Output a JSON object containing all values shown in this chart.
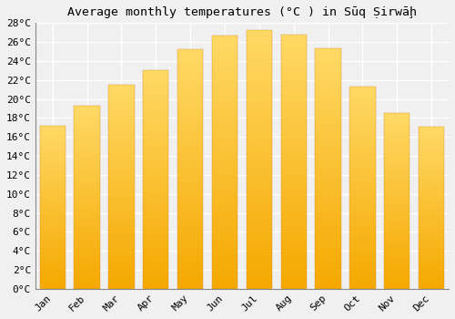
{
  "title": "Average monthly temperatures (°C ) in Sūq Ṣirwāḩ",
  "months": [
    "Jan",
    "Feb",
    "Mar",
    "Apr",
    "May",
    "Jun",
    "Jul",
    "Aug",
    "Sep",
    "Oct",
    "Nov",
    "Dec"
  ],
  "values": [
    17.2,
    19.3,
    21.5,
    23.0,
    25.2,
    26.7,
    27.3,
    26.8,
    25.3,
    21.3,
    18.5,
    17.1
  ],
  "ylim": [
    0,
    28
  ],
  "ytick_step": 2,
  "bar_color_bottom": "#F5A800",
  "bar_color_top": "#FFD966",
  "background_color": "#f0f0f0",
  "grid_color": "#ffffff",
  "title_fontsize": 9.5,
  "tick_fontsize": 8
}
